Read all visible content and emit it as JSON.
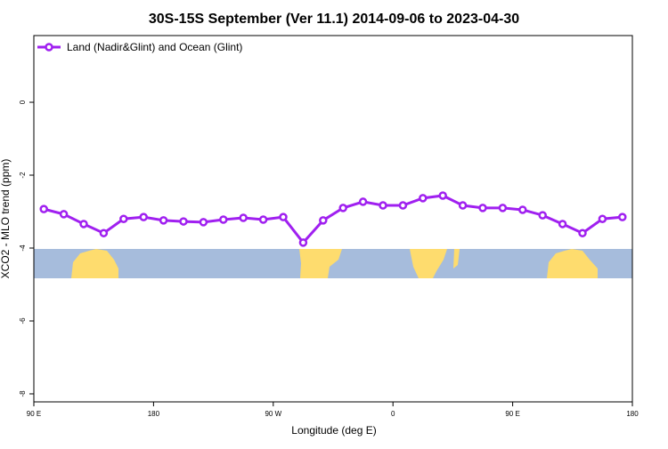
{
  "chart_data": {
    "type": "line",
    "title": "30S-15S September (Ver 11.1)   2014-09-06 to 2023-04-30",
    "x_label": "Longitude (deg E)",
    "y_label": "XCO2 - MLO trend (ppm)",
    "xlim": [
      90,
      540
    ],
    "ylim": [
      -8.22,
      1.83
    ],
    "xticks": [
      {
        "value": 90,
        "label": "90 E"
      },
      180,
      {
        "value": 270,
        "label": "90 W"
      },
      {
        "value": 360,
        "label": "0"
      },
      {
        "value": 450,
        "label": "90 E"
      },
      {
        "value": 540,
        "label": "180"
      }
    ],
    "yticks": [
      0,
      -2,
      -4,
      -6,
      -8
    ],
    "legend": "top-left",
    "x": [
      97.5,
      112.5,
      127.5,
      142.5,
      157.5,
      172.5,
      187.5,
      202.5,
      217.5,
      232.5,
      247.5,
      262.5,
      277.5,
      292.5,
      307.5,
      322.5,
      337.5,
      352.5,
      367.5,
      382.5,
      397.5,
      412.5,
      427.5,
      442.5,
      457.5,
      472.5,
      487.5,
      502.5,
      517.5,
      532.5
    ],
    "series": [
      {
        "name": "Land (Nadir&Glint) and Ocean (Glint)",
        "color": "#a020f0",
        "values": [
          -2.93,
          -3.07,
          -3.34,
          -3.59,
          -3.2,
          -3.15,
          -3.24,
          -3.27,
          -3.29,
          -3.22,
          -3.17,
          -3.22,
          -3.15,
          -3.85,
          -3.24,
          -2.9,
          -2.73,
          -2.83,
          -2.83,
          -2.63,
          -2.56,
          -2.83,
          -2.9,
          -2.9,
          -2.95,
          -3.1,
          -3.34,
          -3.59,
          -3.2,
          -3.15
        ]
      }
    ]
  }
}
